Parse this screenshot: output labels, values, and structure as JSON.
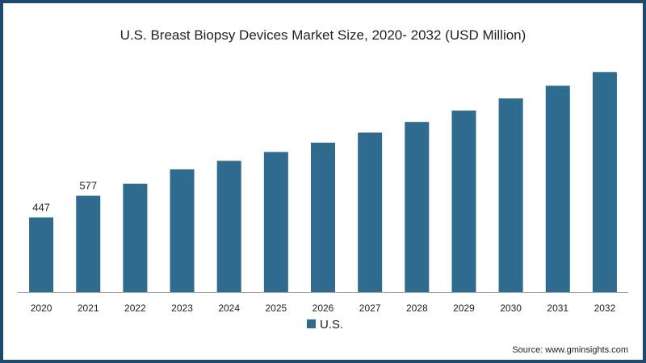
{
  "page": {
    "source": "Source: www.gminsights.com"
  },
  "chart_data": {
    "type": "bar",
    "title": "U.S. Breast Biopsy Devices Market Size, 2020- 2032 (USD Million)",
    "xlabel": "",
    "ylabel": "",
    "categories": [
      "2020",
      "2021",
      "2022",
      "2023",
      "2024",
      "2025",
      "2026",
      "2027",
      "2028",
      "2029",
      "2030",
      "2031",
      "2032"
    ],
    "series": [
      {
        "name": "U.S.",
        "color": "#2e6b8e",
        "values": [
          447,
          577,
          649,
          735,
          786,
          839,
          895,
          955,
          1019,
          1087,
          1160,
          1236,
          1318
        ]
      }
    ],
    "data_labels": [
      "447",
      "577",
      "",
      "",
      "",
      "",
      "",
      "",
      "",
      "",
      "",
      "",
      ""
    ],
    "ylim": [
      0,
      1450
    ],
    "grid": false,
    "legend_position": "bottom"
  }
}
